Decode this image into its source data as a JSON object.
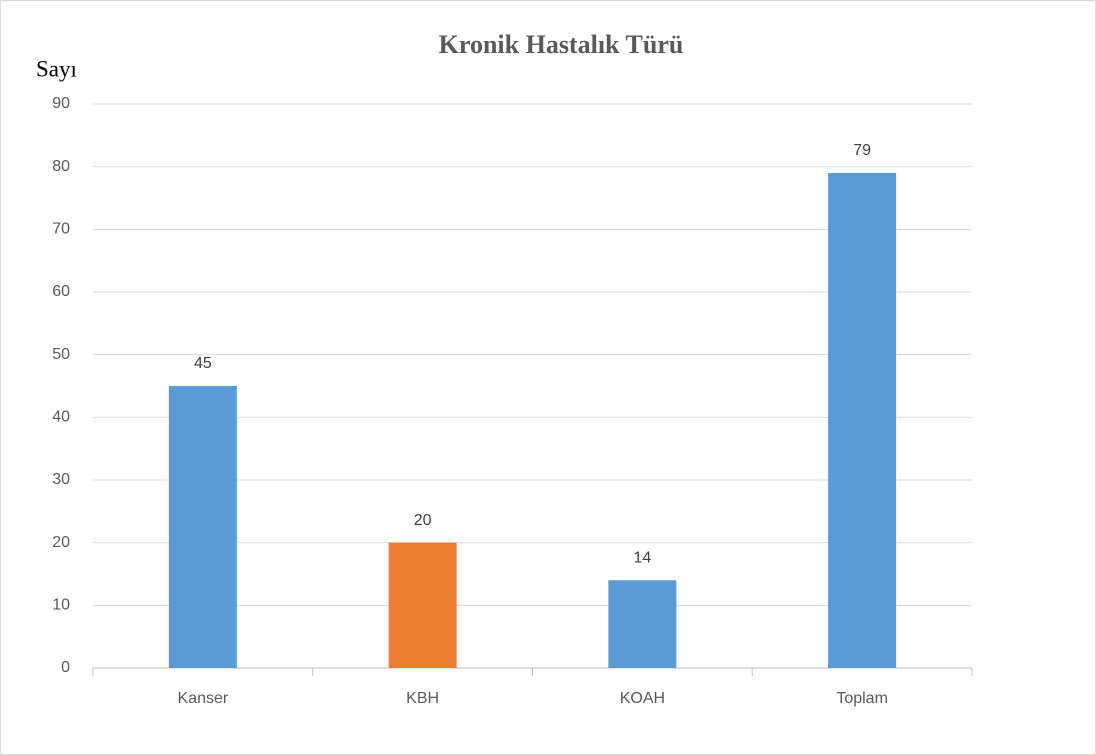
{
  "chart_data": {
    "type": "bar",
    "title": "Kronik Hastalık Türü",
    "y_label": "Sayı",
    "categories": [
      "Kanser",
      "KBH",
      "KOAH",
      "Toplam"
    ],
    "values": [
      45,
      20,
      14,
      79
    ],
    "colors": [
      "#5b9bd5",
      "#ed7d31",
      "#5b9bd5",
      "#5b9bd5"
    ],
    "ylim": [
      0,
      90
    ],
    "yticks": [
      0,
      10,
      20,
      30,
      40,
      50,
      60,
      70,
      80,
      90
    ],
    "grid": true,
    "data_labels": true
  }
}
